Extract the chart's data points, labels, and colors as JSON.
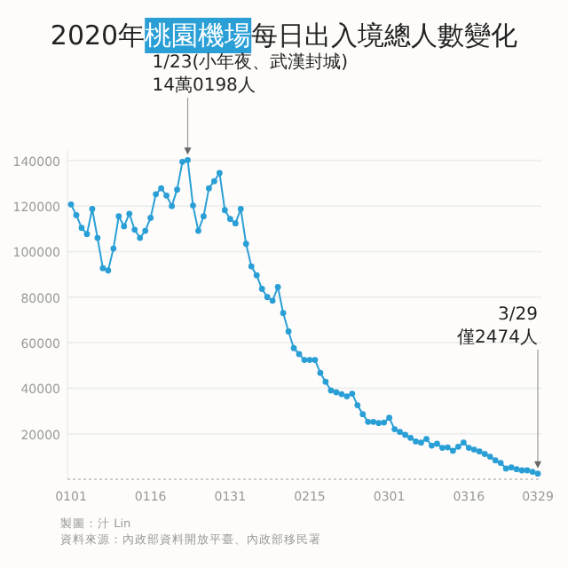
{
  "chart_data": {
    "type": "line",
    "title": "2020年**桃園機場**每日出入境總人數變化",
    "categories": [
      "0101",
      null,
      null,
      null,
      null,
      null,
      null,
      null,
      null,
      null,
      null,
      null,
      null,
      null,
      null,
      "0116",
      null,
      null,
      null,
      null,
      null,
      null,
      null,
      null,
      null,
      null,
      null,
      null,
      null,
      null,
      "0131",
      null,
      null,
      null,
      null,
      null,
      null,
      null,
      null,
      null,
      null,
      null,
      null,
      null,
      null,
      "0215",
      null,
      null,
      null,
      null,
      null,
      null,
      null,
      null,
      null,
      null,
      null,
      null,
      null,
      null,
      "0301",
      null,
      null,
      null,
      null,
      null,
      null,
      null,
      null,
      null,
      null,
      null,
      null,
      null,
      null,
      "0316",
      null,
      null,
      null,
      null,
      null,
      null,
      null,
      null,
      null,
      null,
      null,
      null,
      "0329"
    ],
    "series": [
      {
        "color": "#2a9fd6",
        "values": [
          120700,
          116000,
          110400,
          107700,
          118700,
          106000,
          92700,
          91700,
          101300,
          115500,
          111100,
          116600,
          109600,
          106000,
          109100,
          114800,
          125200,
          127800,
          124600,
          120000,
          127200,
          139400,
          140198,
          120200,
          109100,
          115500,
          127800,
          130900,
          134500,
          118200,
          114300,
          112400,
          118700,
          103400,
          93500,
          89600,
          83600,
          80000,
          78400,
          84400,
          73000,
          64900,
          57600,
          55000,
          52400,
          52400,
          52400,
          46700,
          42800,
          39000,
          38200,
          37400,
          36400,
          37600,
          32500,
          28600,
          25200,
          25200,
          24700,
          24900,
          27000,
          22000,
          20800,
          19500,
          18200,
          16600,
          16100,
          17700,
          14800,
          15600,
          13800,
          14000,
          12500,
          14300,
          16100,
          13800,
          13000,
          12200,
          11100,
          9900,
          8300,
          7200,
          4700,
          5200,
          4400,
          3900,
          3900,
          3300,
          2474
        ]
      }
    ],
    "ylim": [
      0,
      145000
    ],
    "yticks": [
      {
        "value": 0,
        "label": null
      },
      20000,
      40000,
      60000,
      80000,
      100000,
      120000,
      140000
    ],
    "grid": "y",
    "marker": "circle",
    "line_style": "solid",
    "annotations": [
      "1/23(小年夜、武漢封城)",
      "14萬0198人",
      "3/29",
      "僅2474人",
      "製圖：汁 Lin",
      "資料來源：內政部資料開放平臺、內政部移民署"
    ]
  }
}
